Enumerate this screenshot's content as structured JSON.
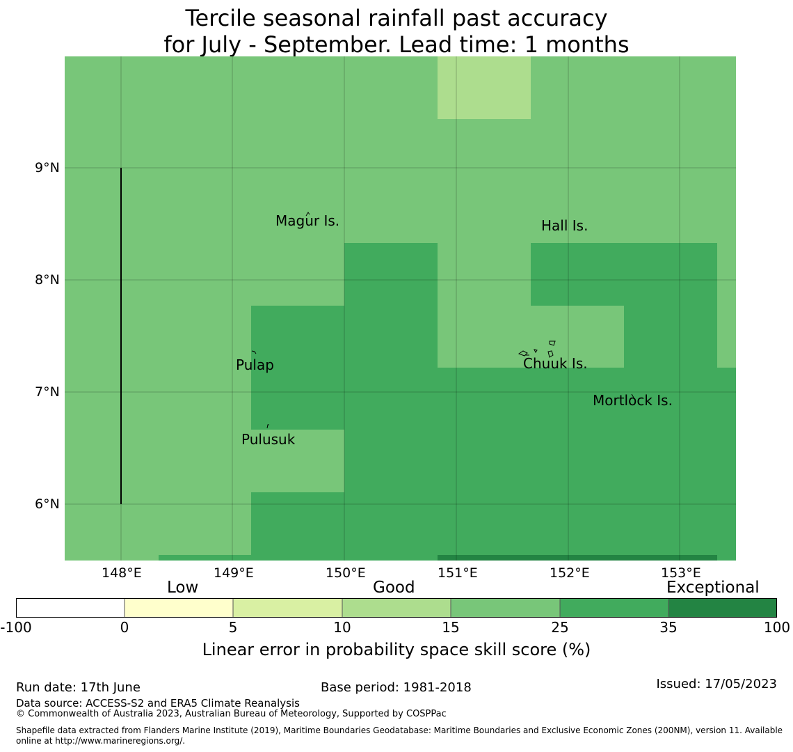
{
  "title_line1": "Tercile seasonal rainfall past accuracy",
  "title_line2": "for July - September. Lead time: 1 months",
  "map": {
    "lon_range": [
      147.5,
      153.5
    ],
    "lat_range": [
      5.5,
      10.0
    ],
    "lon_ticks": [
      "148°E",
      "149°E",
      "150°E",
      "151°E",
      "152°E",
      "153°E"
    ],
    "lat_ticks": [
      "9°N",
      "8°N",
      "7°N",
      "6°N"
    ],
    "places": [
      "Magur Is.",
      "Hall Is.",
      "Pulap",
      "Chuuk Is.",
      "Mortlock Is.",
      "Pulusuk"
    ]
  },
  "colorbar": {
    "colors": [
      "#ffffff",
      "#ffffcc",
      "#d9f0a3",
      "#addd8e",
      "#78c679",
      "#41ab5d",
      "#238443"
    ],
    "ticks": [
      "-100",
      "0",
      "5",
      "10",
      "15",
      "25",
      "35",
      "100"
    ],
    "categories": [
      "Low",
      "Good",
      "Exceptional"
    ],
    "label": "Linear error in probability space skill score (%)"
  },
  "footer": {
    "run_date": "Run date: 17th June",
    "base_period": "Base period: 1981-2018",
    "issued": "Issued: 17/05/2023",
    "data_source": "Data source: ACCESS-S2 and ERA5 Climate Reanalysis",
    "copyright": "© Commonwealth of Australia 2023, Australian Bureau of Meteorology, Supported by COSPPac",
    "shapefile_1": "Shapefile data extracted from Flanders Marine Institute (2019), Maritime Boundaries Geodatabase: Maritime Boundaries and Exclusive Economic Zones (200NM), version 11. Available",
    "shapefile_2": "online at http://www.marineregions.org/."
  }
}
